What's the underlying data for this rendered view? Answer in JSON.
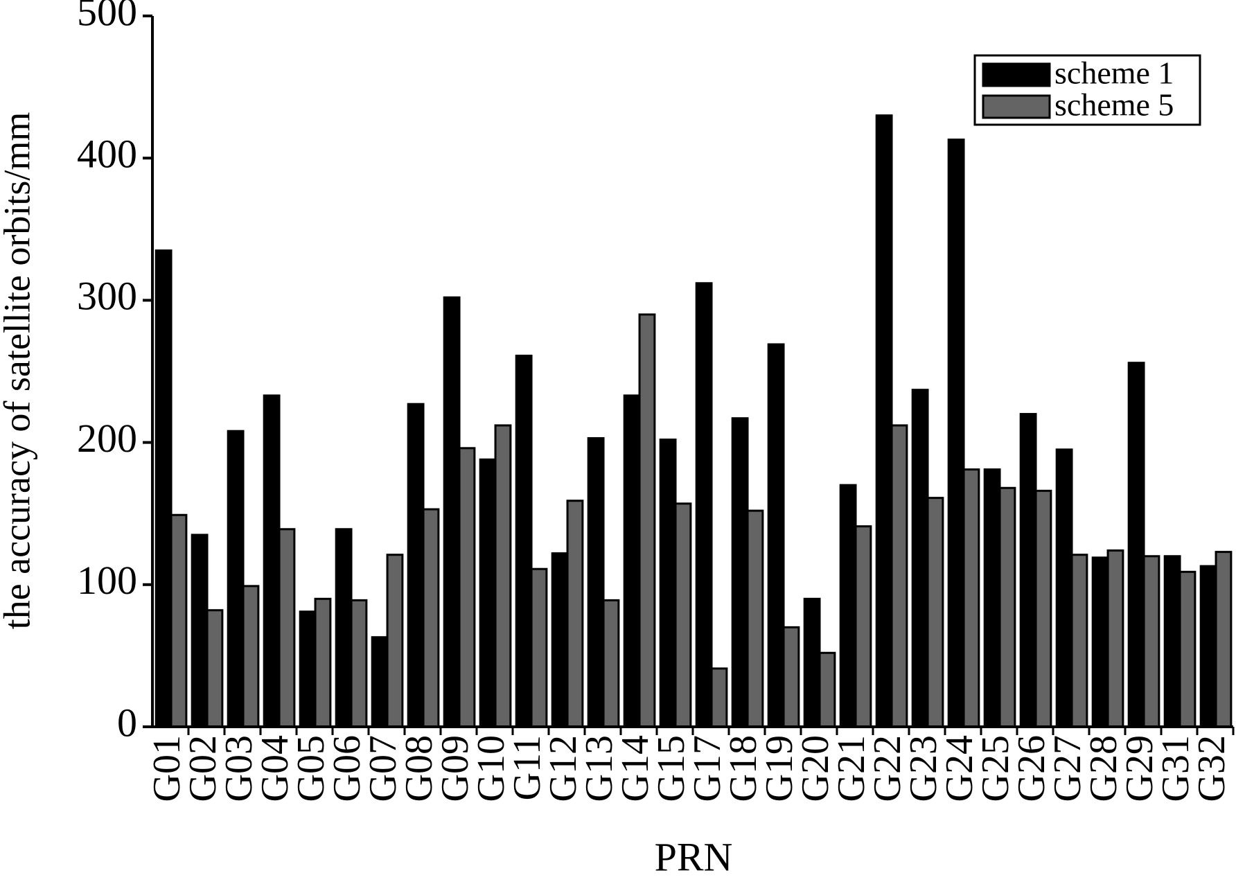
{
  "chart_data": {
    "type": "bar",
    "x_label": "PRN",
    "y_label": "the accuracy of satellite orbits/mm",
    "categories": [
      "G01",
      "G02",
      "G03",
      "G04",
      "G05",
      "G06",
      "G07",
      "G08",
      "G09",
      "G10",
      "G11",
      "G12",
      "G13",
      "G14",
      "G15",
      "G17",
      "G18",
      "G19",
      "G20",
      "G21",
      "G22",
      "G23",
      "G24",
      "G25",
      "G26",
      "G27",
      "G28",
      "G29",
      "G31",
      "G32"
    ],
    "series": [
      {
        "name": "scheme 1",
        "color": "#000000",
        "values": [
          335,
          135,
          208,
          233,
          81,
          139,
          63,
          227,
          302,
          188,
          261,
          122,
          203,
          233,
          202,
          312,
          217,
          269,
          90,
          170,
          430,
          237,
          413,
          181,
          220,
          195,
          119,
          256,
          120,
          113
        ]
      },
      {
        "name": "scheme 5",
        "color": "#646464",
        "values": [
          149,
          82,
          99,
          139,
          90,
          89,
          121,
          153,
          196,
          212,
          111,
          159,
          89,
          290,
          157,
          41,
          152,
          70,
          52,
          141,
          212,
          161,
          181,
          168,
          166,
          121,
          124,
          120,
          109,
          123
        ]
      }
    ],
    "ylim": [
      0,
      500
    ],
    "yticks": [
      0,
      100,
      200,
      300,
      400,
      500
    ],
    "legend": "top-right"
  }
}
